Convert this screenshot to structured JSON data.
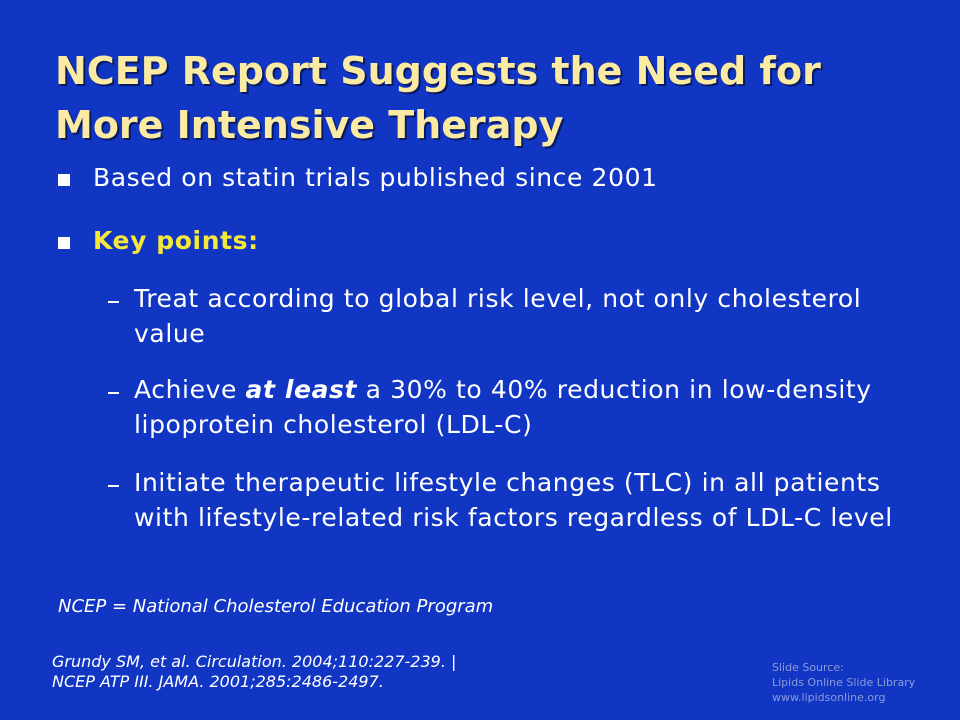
{
  "header": {
    "title": [
      "NCEP Report Suggests the Need for",
      "More Intensive Therapy"
    ]
  },
  "bullets": [
    "Based on statin trials published since 2001",
    "Key points:"
  ],
  "sub_bullets": [
    [
      "Treat according to global risk level, not only cholesterol value"
    ],
    [
      "Achieve ",
      "at least",
      " a 30% to 40% reduction in low-density lipoprotein cholesterol (LDL-C)"
    ],
    [
      "Initiate therapeutic lifestyle changes (TLC) in all patients with lifestyle-related risk factors regardless of LDL-C level"
    ]
  ],
  "footnote": "NCEP = National Cholesterol Education Program",
  "references": [
    "Grundy SM, et al. Circulation. 2004;110:227-239. |",
    "NCEP ATP III. JAMA. 2001;285:2486-2497."
  ],
  "source": [
    "Slide Source:",
    "Lipids Online Slide Library",
    "www.lipidsonline.org"
  ]
}
